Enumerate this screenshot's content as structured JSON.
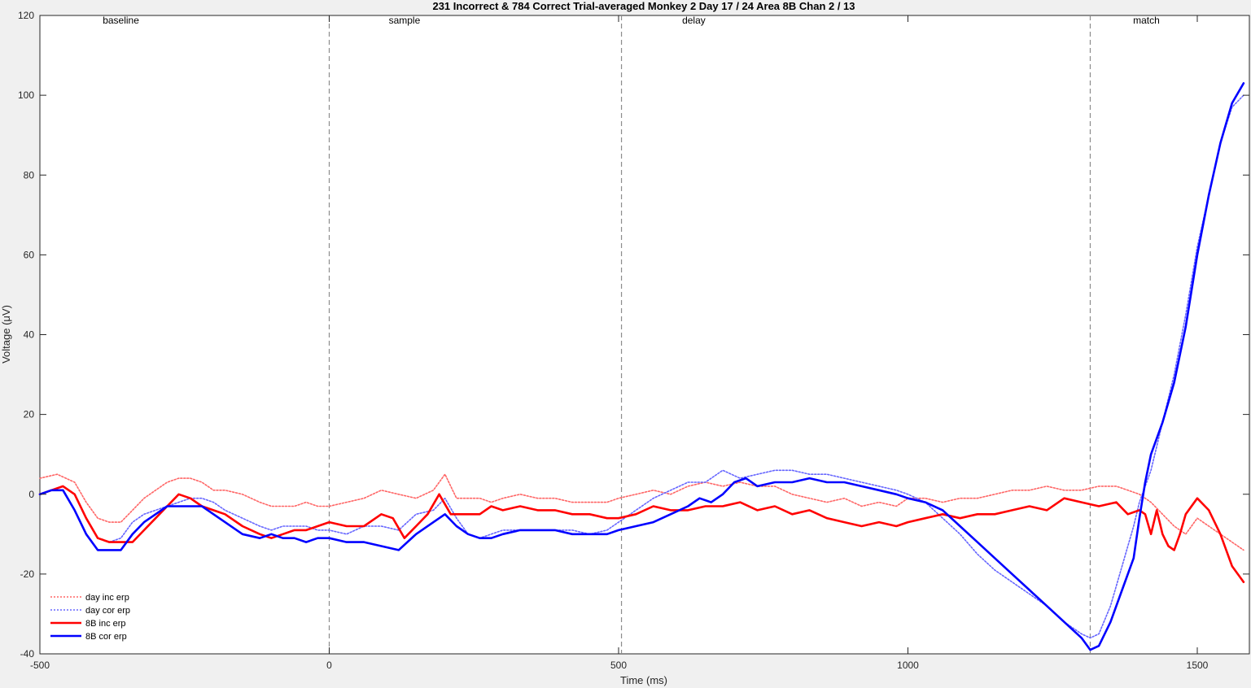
{
  "chart_data": {
    "type": "line",
    "title": "231 Incorrect & 784 Correct Trial-averaged Monkey 2 Day 17 / 24 Area 8B Chan 2 / 13",
    "xlabel": "Time (ms)",
    "ylabel": "Voltage (μV)",
    "xlim": [
      -500,
      1590
    ],
    "ylim": [
      -40,
      120
    ],
    "xticks": [
      -500,
      0,
      500,
      1000,
      1500
    ],
    "yticks": [
      -40,
      -20,
      0,
      20,
      40,
      60,
      80,
      100,
      120
    ],
    "grid": false,
    "legend_position": "bottom-left",
    "epoch_markers": [
      0,
      505,
      1315
    ],
    "epoch_labels": [
      {
        "label": "baseline",
        "x": -360
      },
      {
        "label": "sample",
        "x": 130
      },
      {
        "label": "delay",
        "x": 630
      },
      {
        "label": "match",
        "x": 1412
      }
    ],
    "colors": {
      "inc": "#ff0000",
      "cor": "#0000ff",
      "day_inc": "#ff6666",
      "day_cor": "#6666ff"
    },
    "series": [
      {
        "name": "day inc erp",
        "style": "dotted",
        "color": "#ff6666",
        "x": [
          -500,
          -470,
          -440,
          -420,
          -400,
          -380,
          -360,
          -340,
          -320,
          -300,
          -280,
          -260,
          -240,
          -220,
          -200,
          -180,
          -150,
          -120,
          -100,
          -80,
          -60,
          -40,
          -20,
          0,
          30,
          60,
          90,
          120,
          150,
          180,
          200,
          220,
          240,
          260,
          280,
          300,
          330,
          360,
          390,
          420,
          450,
          480,
          500,
          530,
          560,
          590,
          620,
          650,
          680,
          710,
          740,
          770,
          800,
          830,
          860,
          890,
          920,
          950,
          980,
          1000,
          1030,
          1060,
          1090,
          1120,
          1150,
          1180,
          1210,
          1240,
          1270,
          1300,
          1330,
          1360,
          1380,
          1400,
          1420,
          1440,
          1460,
          1480,
          1500,
          1520,
          1540,
          1560,
          1580
        ],
        "y": [
          4,
          5,
          3,
          -2,
          -6,
          -7,
          -7,
          -4,
          -1,
          1,
          3,
          4,
          4,
          3,
          1,
          1,
          0,
          -2,
          -3,
          -3,
          -3,
          -2,
          -3,
          -3,
          -2,
          -1,
          1,
          0,
          -1,
          1,
          5,
          -1,
          -1,
          -1,
          -2,
          -1,
          0,
          -1,
          -1,
          -2,
          -2,
          -2,
          -1,
          0,
          1,
          0,
          2,
          3,
          2,
          3,
          2,
          2,
          0,
          -1,
          -2,
          -1,
          -3,
          -2,
          -3,
          -1,
          -1,
          -2,
          -1,
          -1,
          0,
          1,
          1,
          2,
          1,
          1,
          2,
          2,
          1,
          0,
          -2,
          -5,
          -8,
          -10,
          -6,
          -8,
          -10,
          -12,
          -14
        ]
      },
      {
        "name": "day cor erp",
        "style": "dotted",
        "color": "#6666ff",
        "x": [
          -500,
          -480,
          -460,
          -440,
          -420,
          -400,
          -380,
          -360,
          -340,
          -320,
          -300,
          -280,
          -260,
          -240,
          -220,
          -200,
          -180,
          -150,
          -120,
          -100,
          -80,
          -60,
          -40,
          -20,
          0,
          30,
          60,
          90,
          120,
          150,
          180,
          200,
          220,
          240,
          260,
          280,
          300,
          330,
          360,
          390,
          420,
          450,
          480,
          500,
          530,
          560,
          590,
          620,
          650,
          680,
          710,
          740,
          770,
          800,
          830,
          860,
          890,
          920,
          950,
          980,
          1000,
          1030,
          1060,
          1090,
          1120,
          1150,
          1180,
          1210,
          1240,
          1270,
          1300,
          1315,
          1330,
          1350,
          1370,
          1390,
          1400,
          1420,
          1440,
          1460,
          1480,
          1500,
          1520,
          1540,
          1560,
          1580
        ],
        "y": [
          0,
          1,
          2,
          0,
          -6,
          -11,
          -12,
          -11,
          -7,
          -5,
          -4,
          -3,
          -2,
          -1,
          -1,
          -2,
          -4,
          -6,
          -8,
          -9,
          -8,
          -8,
          -8,
          -9,
          -9,
          -10,
          -8,
          -8,
          -9,
          -5,
          -4,
          -1,
          -6,
          -10,
          -11,
          -10,
          -9,
          -9,
          -9,
          -9,
          -9,
          -10,
          -9,
          -7,
          -4,
          -1,
          1,
          3,
          3,
          6,
          4,
          5,
          6,
          6,
          5,
          5,
          4,
          3,
          2,
          1,
          0,
          -2,
          -6,
          -10,
          -15,
          -19,
          -22,
          -25,
          -28,
          -32,
          -35,
          -36,
          -35,
          -28,
          -18,
          -8,
          -2,
          6,
          18,
          30,
          45,
          62,
          75,
          88,
          97,
          100
        ]
      },
      {
        "name": "8B inc erp",
        "style": "solid",
        "color": "#ff0000",
        "x": [
          -500,
          -480,
          -460,
          -440,
          -420,
          -400,
          -380,
          -360,
          -340,
          -320,
          -300,
          -280,
          -260,
          -240,
          -220,
          -200,
          -180,
          -150,
          -120,
          -100,
          -80,
          -60,
          -40,
          -20,
          0,
          30,
          60,
          90,
          110,
          130,
          150,
          170,
          190,
          210,
          230,
          260,
          280,
          300,
          330,
          360,
          390,
          420,
          450,
          480,
          500,
          530,
          560,
          590,
          620,
          650,
          680,
          710,
          740,
          770,
          800,
          830,
          860,
          890,
          920,
          950,
          980,
          1000,
          1030,
          1060,
          1090,
          1120,
          1150,
          1180,
          1210,
          1240,
          1270,
          1300,
          1330,
          1360,
          1380,
          1400,
          1410,
          1420,
          1430,
          1440,
          1450,
          1460,
          1470,
          1480,
          1500,
          1520,
          1540,
          1560,
          1580
        ],
        "y": [
          0,
          1,
          2,
          0,
          -6,
          -11,
          -12,
          -12,
          -12,
          -9,
          -6,
          -3,
          0,
          -1,
          -3,
          -4,
          -5,
          -8,
          -10,
          -11,
          -10,
          -9,
          -9,
          -8,
          -7,
          -8,
          -8,
          -5,
          -6,
          -11,
          -8,
          -5,
          0,
          -5,
          -5,
          -5,
          -3,
          -4,
          -3,
          -4,
          -4,
          -5,
          -5,
          -6,
          -6,
          -5,
          -3,
          -4,
          -4,
          -3,
          -3,
          -2,
          -4,
          -3,
          -5,
          -4,
          -6,
          -7,
          -8,
          -7,
          -8,
          -7,
          -6,
          -5,
          -6,
          -5,
          -5,
          -4,
          -3,
          -4,
          -1,
          -2,
          -3,
          -2,
          -5,
          -4,
          -5,
          -10,
          -4,
          -10,
          -13,
          -14,
          -10,
          -5,
          -1,
          -4,
          -10,
          -18,
          -22
        ]
      },
      {
        "name": "8B cor erp",
        "style": "solid",
        "color": "#0000ff",
        "x": [
          -500,
          -480,
          -460,
          -440,
          -420,
          -400,
          -380,
          -360,
          -340,
          -320,
          -300,
          -280,
          -260,
          -240,
          -220,
          -200,
          -180,
          -150,
          -120,
          -100,
          -80,
          -60,
          -40,
          -20,
          0,
          30,
          60,
          90,
          120,
          150,
          180,
          200,
          220,
          240,
          260,
          280,
          300,
          330,
          360,
          390,
          420,
          450,
          480,
          500,
          530,
          560,
          590,
          620,
          640,
          660,
          680,
          700,
          720,
          740,
          770,
          800,
          830,
          860,
          890,
          920,
          950,
          980,
          1000,
          1030,
          1060,
          1090,
          1120,
          1150,
          1180,
          1210,
          1240,
          1270,
          1300,
          1315,
          1330,
          1350,
          1370,
          1390,
          1400,
          1410,
          1420,
          1440,
          1460,
          1480,
          1500,
          1520,
          1540,
          1560,
          1580
        ],
        "y": [
          0,
          1,
          1,
          -4,
          -10,
          -14,
          -14,
          -14,
          -10,
          -7,
          -5,
          -3,
          -3,
          -3,
          -3,
          -5,
          -7,
          -10,
          -11,
          -10,
          -11,
          -11,
          -12,
          -11,
          -11,
          -12,
          -12,
          -13,
          -14,
          -10,
          -7,
          -5,
          -8,
          -10,
          -11,
          -11,
          -10,
          -9,
          -9,
          -9,
          -10,
          -10,
          -10,
          -9,
          -8,
          -7,
          -5,
          -3,
          -1,
          -2,
          0,
          3,
          4,
          2,
          3,
          3,
          4,
          3,
          3,
          2,
          1,
          0,
          -1,
          -2,
          -4,
          -8,
          -12,
          -16,
          -20,
          -24,
          -28,
          -32,
          -36,
          -39,
          -38,
          -32,
          -24,
          -16,
          -6,
          3,
          10,
          18,
          28,
          42,
          60,
          75,
          88,
          98,
          103
        ]
      }
    ]
  }
}
